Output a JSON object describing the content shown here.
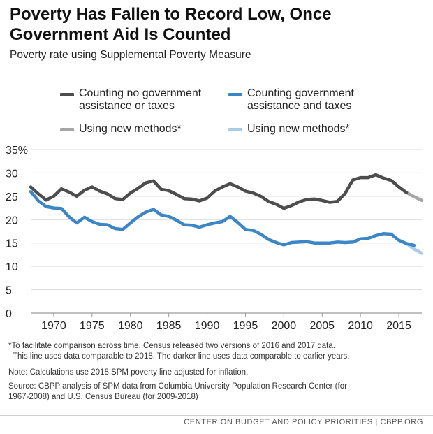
{
  "title": "Poverty Has Fallen to Record Low, Once Government Aid Is Counted",
  "subtitle": "Poverty rate using Supplemental Poverty Measure",
  "legend": {
    "no_assist": "Counting no government assistance or taxes",
    "no_assist_line1": "Counting no government",
    "no_assist_line2": "assistance or taxes",
    "with_assist_line1": "Counting government",
    "with_assist_line2": "assistance and taxes",
    "new_methods_left": "Using new methods*",
    "new_methods_right": "Using new methods*"
  },
  "notes": {
    "asterisk_line1": "*To facilitate comparison across time, Census released two versions of 2016 and 2017 data.",
    "asterisk_line2": "This line uses data comparable to 2018. The darker line uses data comparable to earlier years.",
    "note": "Note: Calculations use 2018 SPM poverty line adjusted for inflation.",
    "source_line1": "Source: CBPP analysis of SPM data from Columbia University Population Research Center (for",
    "source_line2": "1967-2008) and U.S. Census Bureau (for 2009-2018)"
  },
  "footer": "CENTER ON BUDGET AND POLICY PRIORITIES | CBPP.ORG",
  "colors": {
    "no_assist": "#4d4d4d",
    "with_assist": "#3d86c6",
    "no_assist_new": "#a6a6a6",
    "with_assist_new": "#a9cbe8",
    "grid": "#d9d9d9"
  },
  "chart_data": {
    "type": "line",
    "xlabel": "",
    "ylabel": "",
    "xlim": [
      1967,
      2018
    ],
    "ylim": [
      0,
      35
    ],
    "x_ticks": [
      1970,
      1975,
      1980,
      1985,
      1990,
      1995,
      2000,
      2005,
      2010,
      2015
    ],
    "y_ticks": [
      0,
      5,
      10,
      15,
      20,
      25,
      30,
      35
    ],
    "y_tick_labels": [
      "0",
      "5",
      "10",
      "15",
      "20",
      "25",
      "30",
      "35%"
    ],
    "grid": true,
    "series": [
      {
        "name": "Counting no government assistance or taxes",
        "color": "#4d4d4d",
        "x": [
          1967,
          1968,
          1969,
          1970,
          1971,
          1972,
          1973,
          1974,
          1975,
          1976,
          1977,
          1978,
          1979,
          1980,
          1981,
          1982,
          1983,
          1984,
          1985,
          1986,
          1987,
          1988,
          1989,
          1990,
          1991,
          1992,
          1993,
          1994,
          1995,
          1996,
          1997,
          1998,
          1999,
          2000,
          2001,
          2002,
          2003,
          2004,
          2005,
          2006,
          2007,
          2008,
          2009,
          2010,
          2011,
          2012,
          2013,
          2014,
          2015,
          2016
        ],
        "y": [
          27.0,
          25.5,
          24.2,
          25.0,
          26.6,
          25.9,
          25.0,
          26.3,
          27.0,
          26.1,
          25.5,
          24.5,
          24.3,
          25.7,
          26.7,
          27.9,
          28.3,
          26.5,
          26.2,
          25.4,
          24.5,
          24.4,
          24.0,
          24.6,
          26.1,
          27.0,
          27.7,
          27.0,
          26.1,
          25.7,
          25.0,
          23.9,
          23.3,
          22.4,
          23.0,
          23.8,
          24.3,
          24.4,
          24.1,
          23.7,
          23.9,
          25.6,
          28.5,
          29.0,
          29.0,
          29.6,
          28.9,
          28.4,
          27.0,
          25.8
        ]
      },
      {
        "name": "Counting government assistance and taxes",
        "color": "#3d86c6",
        "x": [
          1967,
          1968,
          1969,
          1970,
          1971,
          1972,
          1973,
          1974,
          1975,
          1976,
          1977,
          1978,
          1979,
          1980,
          1981,
          1982,
          1983,
          1984,
          1985,
          1986,
          1987,
          1988,
          1989,
          1990,
          1991,
          1992,
          1993,
          1994,
          1995,
          1996,
          1997,
          1998,
          1999,
          2000,
          2001,
          2002,
          2003,
          2004,
          2005,
          2006,
          2007,
          2008,
          2009,
          2010,
          2011,
          2012,
          2013,
          2014,
          2015,
          2016,
          2017
        ],
        "y": [
          26.0,
          24.0,
          22.8,
          22.5,
          22.4,
          20.6,
          19.3,
          20.5,
          19.6,
          19.0,
          18.9,
          18.1,
          17.9,
          19.3,
          20.6,
          21.6,
          22.2,
          21.0,
          20.7,
          19.9,
          18.9,
          18.8,
          18.4,
          18.9,
          19.3,
          19.6,
          20.7,
          19.4,
          17.9,
          17.7,
          16.9,
          15.8,
          15.1,
          14.6,
          15.1,
          15.2,
          15.3,
          15.0,
          15.0,
          15.0,
          15.2,
          15.1,
          15.2,
          15.9,
          16.0,
          16.6,
          17.0,
          16.9,
          15.6,
          14.9,
          14.5
        ]
      },
      {
        "name": "Using new methods*",
        "color": "#a6a6a6",
        "x": [
          2016,
          2017,
          2018
        ],
        "y": [
          25.8,
          24.9,
          24.1
        ]
      },
      {
        "name": "Using new methods*",
        "color": "#a9cbe8",
        "x": [
          2016,
          2017,
          2018
        ],
        "y": [
          14.9,
          13.7,
          12.8
        ]
      }
    ]
  }
}
